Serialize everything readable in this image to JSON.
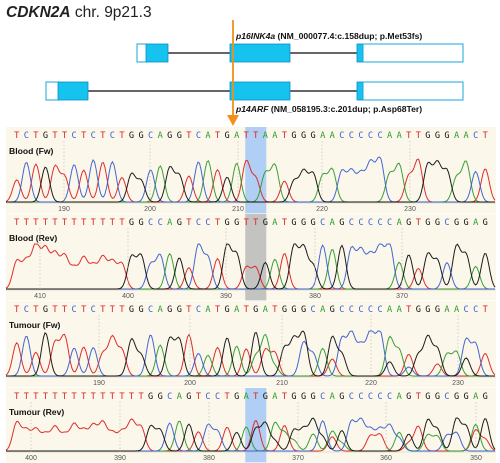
{
  "figure": {
    "gene": "CDKN2A",
    "location": " chr. 9p21.3"
  },
  "colors": {
    "exon": "#15c3ee",
    "exon_stroke": "#0a8fc8",
    "utr_stroke": "#1aa9dd",
    "arrow": "#f29019",
    "panel_bg": "#fbf7ea",
    "highlight_blue": "#a8c9f5",
    "highlight_grey": "#bdbdbd",
    "base_A": "#2e9b2e",
    "base_C": "#3a5fd0",
    "base_G": "#111111",
    "base_T": "#dd2222"
  },
  "isoforms": [
    {
      "name": "p16INK4a",
      "variant": " (NM_000077.4:c.158dup; p.Met53fs)"
    },
    {
      "name": "p14ARF",
      "variant": " (NM_058195.3:c.201dup; p.Asp68Ter)"
    }
  ],
  "panels": [
    {
      "title": "Blood (Fw)",
      "sequence": "TCTGTTCTCTCTGGCAGGTCATGATTAATGGGAACCCCCAATTGGGAACT",
      "highlight": "blue",
      "ticks": [
        {
          "label": "190",
          "x": 64
        },
        {
          "label": "200",
          "x": 150
        },
        {
          "label": "210",
          "x": 238
        },
        {
          "label": "220",
          "x": 322
        },
        {
          "label": "230",
          "x": 410
        }
      ]
    },
    {
      "title": "Blood (Rev)",
      "sequence": "TTTTTTTTTTTTGGCCAGTCCTGGTTGATGGGCAGCCCCCAGTGGCGGAG",
      "highlight": "grey",
      "ticks": [
        {
          "label": "410",
          "x": 40
        },
        {
          "label": "400",
          "x": 128
        },
        {
          "label": "390",
          "x": 226
        },
        {
          "label": "380",
          "x": 315
        },
        {
          "label": "370",
          "x": 402
        }
      ]
    },
    {
      "title": "Tumour (Fw)",
      "sequence": "TCTGTTCTCTTTGGCAGGTCATGATGATGGGCAGCCCCCAATGGGAACCT",
      "highlight": "none",
      "ticks": [
        {
          "label": "190",
          "x": 99
        },
        {
          "label": "200",
          "x": 190
        },
        {
          "label": "210",
          "x": 282
        },
        {
          "label": "220",
          "x": 371
        },
        {
          "label": "230",
          "x": 458
        }
      ]
    },
    {
      "title": "Tumour (Rev)",
      "sequence": "TTTTTTTTTTTTTTGGCAGTCCTGATGATGGGCAGCCCCCAGTGGCGGAG",
      "highlight": "blue",
      "ticks": [
        {
          "label": "400",
          "x": 31
        },
        {
          "label": "390",
          "x": 120
        },
        {
          "label": "380",
          "x": 209
        },
        {
          "label": "370",
          "x": 298
        },
        {
          "label": "360",
          "x": 386
        },
        {
          "label": "350",
          "x": 476
        }
      ]
    }
  ]
}
